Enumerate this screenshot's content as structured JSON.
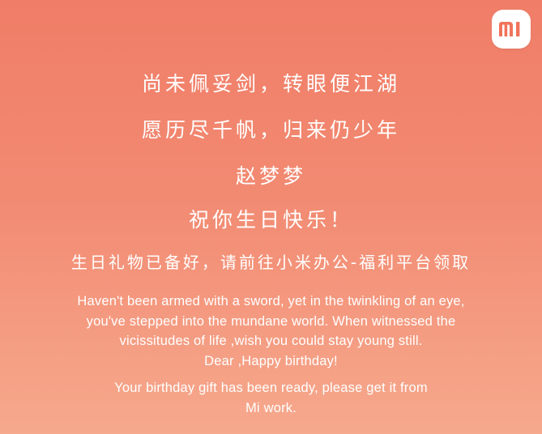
{
  "logo": {
    "text": "mi",
    "icon": "mi-logo-icon",
    "background": "#ffffff",
    "glyph_color": "#f0735b"
  },
  "colors": {
    "background_top": "#f07d67",
    "background_bottom": "#f6a98d",
    "text": "#ffffff"
  },
  "poem": {
    "line1": "尚未佩妥剑，转眼便江湖",
    "line2": "愿历尽千帆，归来仍少年"
  },
  "recipient_name": "赵梦梦",
  "greeting_cn": "祝你生日快乐！",
  "gift_cn": "生日礼物已备好，请前往小米办公-福利平台领取",
  "english": {
    "line1": "Haven't been armed with a sword, yet in the twinkling of an eye,",
    "line2": "you've stepped into the mundane world. When witnessed the",
    "line3": "vicissitudes of life ,wish you could stay young still.",
    "line4": "Dear ,Happy birthday!",
    "gift_line1": "Your birthday gift has been ready, please get it from",
    "gift_line2": "Mi work."
  }
}
